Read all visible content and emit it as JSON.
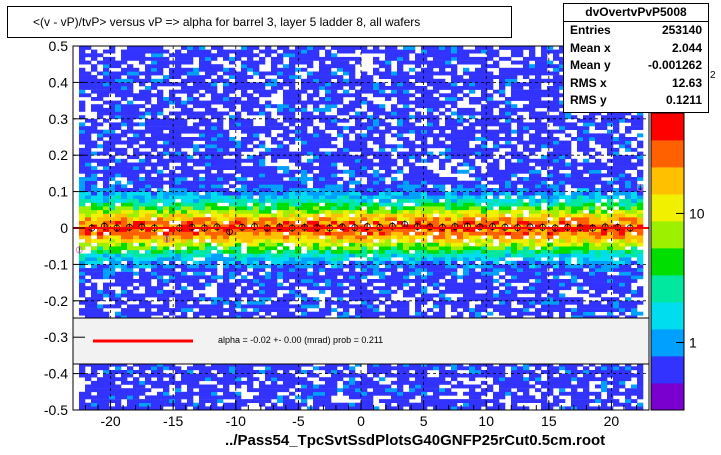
{
  "title": "<(v - vP)/tvP> versus   vP => alpha for barrel 3, layer 5 ladder 8, all wafers",
  "xlabel": "../Pass54_TpcSvtSsdPlotsG40GNFP25rCut0.5cm.root",
  "stats": {
    "name": "dvOvertvPvP5008",
    "rows": [
      {
        "label": "Entries",
        "value": "253140"
      },
      {
        "label": "Mean x",
        "value": "2.044"
      },
      {
        "label": "Mean y",
        "value": "-0.001262"
      },
      {
        "label": "RMS x",
        "value": "12.63"
      },
      {
        "label": "RMS y",
        "value": "0.1211"
      }
    ]
  },
  "fit_label": "alpha =   -0.02 +-  0.00 (mrad) prob = 0.211",
  "colors": {
    "fit_line": "#ff0000",
    "palette": [
      "#7a00d0",
      "#3333ff",
      "#00a0ff",
      "#00ddee",
      "#00e8a0",
      "#00dd00",
      "#9cf000",
      "#f0f000",
      "#ffc000",
      "#ff6000",
      "#ff0000"
    ]
  },
  "chart_data": {
    "type": "heatmap",
    "x_range": [
      -23,
      23
    ],
    "y_range": [
      -0.5,
      0.5
    ],
    "x_ticks": [
      -20,
      -15,
      -10,
      -5,
      0,
      5,
      10,
      15,
      20
    ],
    "x_tick_labels": [
      "-20",
      "-15",
      "-10",
      "-5",
      "0",
      "5",
      "10",
      "15",
      "20"
    ],
    "y_ticks": [
      -0.5,
      -0.4,
      -0.3,
      -0.2,
      -0.1,
      0,
      0.1,
      0.2,
      0.3,
      0.4,
      0.5
    ],
    "y_tick_labels": [
      "-0.5",
      "-0.4",
      "-0.3",
      "-0.2",
      "-0.1",
      "0",
      "0.1",
      "0.2",
      "0.3",
      "0.4",
      "0.5"
    ],
    "z_scale": "log",
    "z_ticks": [
      1,
      10
    ],
    "z_tick_labels": [
      "1",
      "10"
    ],
    "z_top_label": "2",
    "grid": true,
    "profile_points": {
      "x": [
        -22.5,
        -21.5,
        -20.5,
        -19.5,
        -18.5,
        -17.5,
        -16.5,
        -15.5,
        -14.5,
        -13.5,
        -12.5,
        -11.5,
        -10.5,
        -9.5,
        -8.5,
        -7.5,
        -6.5,
        -5.5,
        -4.5,
        -3.5,
        -2.5,
        -1.5,
        -0.5,
        0.5,
        1.5,
        2.5,
        3.5,
        4.5,
        5.5,
        6.5,
        7.5,
        8.5,
        9.5,
        10.5,
        11.5,
        12.5,
        13.5,
        14.5,
        15.5,
        16.5,
        17.5,
        18.5,
        19.5,
        20.5,
        21.5,
        22.3
      ],
      "y": [
        -0.06,
        0.0,
        0.005,
        0.0,
        0.002,
        0.003,
        0.0,
        -0.03,
        0.0,
        0.002,
        0.0,
        0.003,
        -0.01,
        0.002,
        0.004,
        0.0,
        0.003,
        0.0,
        0.002,
        0.001,
        0.0,
        0.003,
        0.001,
        0.004,
        0.002,
        0.005,
        0.01,
        0.004,
        0.003,
        0.002,
        0.004,
        0.005,
        0.003,
        0.004,
        0.002,
        0.001,
        0.003,
        0.002,
        0.0,
        0.002,
        0.001,
        0.0,
        0.003,
        0.002,
        0.0,
        0.11
      ]
    },
    "fit": {
      "slope_mrad": -0.02,
      "slope_error": 0.0,
      "prob": 0.211,
      "x_range": [
        -23,
        23
      ]
    }
  }
}
